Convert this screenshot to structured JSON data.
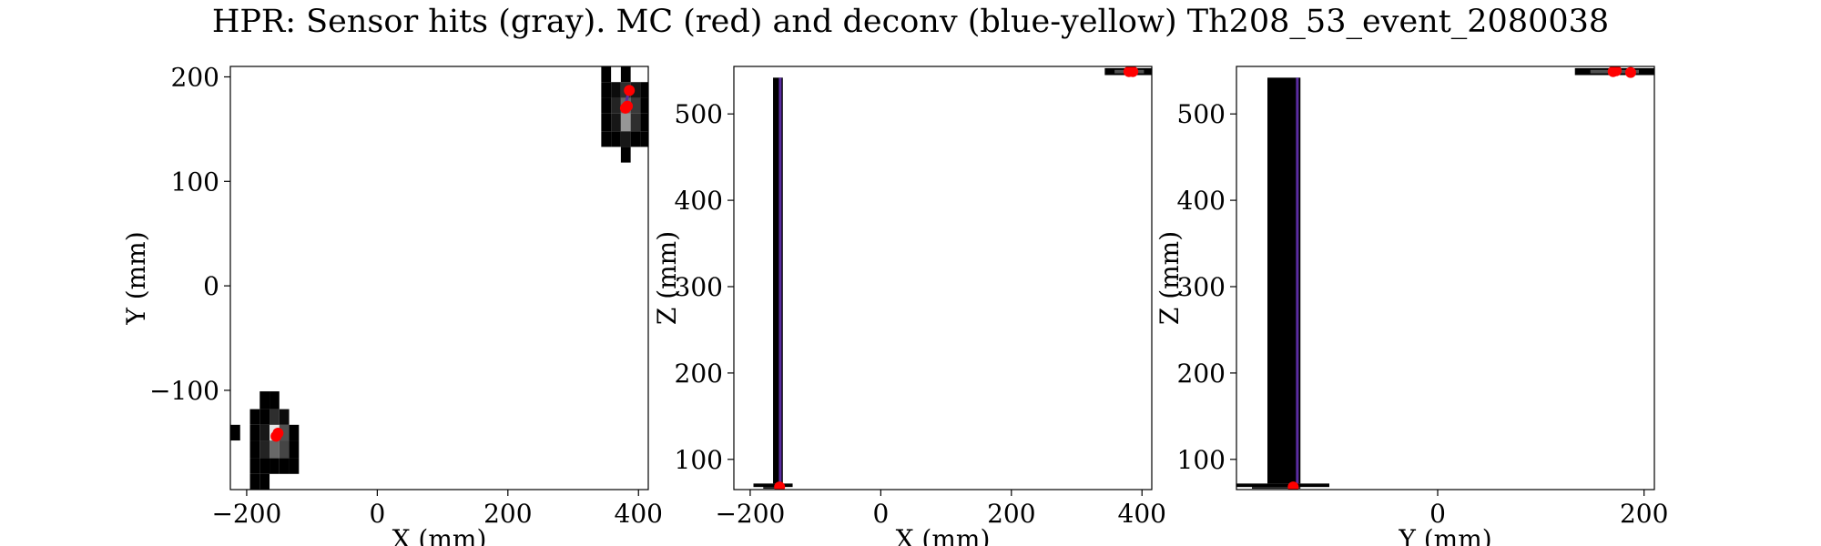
{
  "figure": {
    "title": "HPR: Sensor hits (gray). MC (red) and deconv (blue-yellow) Th208_53_event_2080038"
  },
  "colors": {
    "mc_points": "#ff0000",
    "deconv_line": "#5a2ca0",
    "sensor_hits_dark": "#000000",
    "sensor_hits_light": "#ffffff"
  },
  "chart_data": [
    {
      "type": "heatmap",
      "title": "",
      "xlabel": "X (mm)",
      "ylabel": "Y (mm)",
      "xlim": [
        -225,
        415
      ],
      "ylim": [
        -195,
        210
      ],
      "xticks": [
        -200,
        0,
        200,
        400
      ],
      "xtick_labels": [
        "−200",
        "0",
        "200",
        "400"
      ],
      "yticks": [
        -100,
        0,
        100,
        200
      ],
      "ytick_labels": [
        "−100",
        "0",
        "100",
        "200"
      ],
      "grid": false,
      "sensor_hits": [
        {
          "x0": -225,
          "x1": -210,
          "y0": -148,
          "y1": -133,
          "gray": 0.0
        },
        {
          "x0": -195,
          "x1": -180,
          "y0": -195,
          "y1": -180,
          "gray": 0.0
        },
        {
          "x0": -195,
          "x1": -180,
          "y0": -180,
          "y1": -165,
          "gray": 0.0
        },
        {
          "x0": -195,
          "x1": -180,
          "y0": -165,
          "y1": -148,
          "gray": 0.0
        },
        {
          "x0": -195,
          "x1": -180,
          "y0": -148,
          "y1": -133,
          "gray": 0.0
        },
        {
          "x0": -195,
          "x1": -180,
          "y0": -133,
          "y1": -118,
          "gray": 0.0
        },
        {
          "x0": -180,
          "x1": -165,
          "y0": -180,
          "y1": -165,
          "gray": 0.0
        },
        {
          "x0": -180,
          "x1": -165,
          "y0": -165,
          "y1": -148,
          "gray": 0.15
        },
        {
          "x0": -180,
          "x1": -165,
          "y0": -148,
          "y1": -133,
          "gray": 0.1
        },
        {
          "x0": -180,
          "x1": -165,
          "y0": -133,
          "y1": -118,
          "gray": 0.0
        },
        {
          "x0": -180,
          "x1": -165,
          "y0": -118,
          "y1": -101,
          "gray": 0.0
        },
        {
          "x0": -180,
          "x1": -165,
          "y0": -195,
          "y1": -180,
          "gray": 0.0
        },
        {
          "x0": -165,
          "x1": -150,
          "y0": -180,
          "y1": -165,
          "gray": 0.0
        },
        {
          "x0": -165,
          "x1": -150,
          "y0": -165,
          "y1": -148,
          "gray": 0.45
        },
        {
          "x0": -165,
          "x1": -150,
          "y0": -148,
          "y1": -133,
          "gray": 1.0
        },
        {
          "x0": -165,
          "x1": -150,
          "y0": -133,
          "y1": -118,
          "gray": 0.2
        },
        {
          "x0": -165,
          "x1": -150,
          "y0": -118,
          "y1": -101,
          "gray": 0.0
        },
        {
          "x0": -150,
          "x1": -135,
          "y0": -180,
          "y1": -165,
          "gray": 0.0
        },
        {
          "x0": -150,
          "x1": -135,
          "y0": -165,
          "y1": -148,
          "gray": 0.3
        },
        {
          "x0": -150,
          "x1": -135,
          "y0": -148,
          "y1": -133,
          "gray": 0.35
        },
        {
          "x0": -150,
          "x1": -135,
          "y0": -133,
          "y1": -118,
          "gray": 0.05
        },
        {
          "x0": -135,
          "x1": -120,
          "y0": -180,
          "y1": -165,
          "gray": 0.0
        },
        {
          "x0": -135,
          "x1": -120,
          "y0": -165,
          "y1": -148,
          "gray": 0.0
        },
        {
          "x0": -135,
          "x1": -120,
          "y0": -148,
          "y1": -133,
          "gray": 0.0
        },
        {
          "x0": 343,
          "x1": 358,
          "y0": 133,
          "y1": 148,
          "gray": 0.0
        },
        {
          "x0": 343,
          "x1": 358,
          "y0": 148,
          "y1": 165,
          "gray": 0.0
        },
        {
          "x0": 343,
          "x1": 358,
          "y0": 165,
          "y1": 180,
          "gray": 0.0
        },
        {
          "x0": 343,
          "x1": 358,
          "y0": 180,
          "y1": 195,
          "gray": 0.0
        },
        {
          "x0": 343,
          "x1": 358,
          "y0": 195,
          "y1": 210,
          "gray": 0.0
        },
        {
          "x0": 358,
          "x1": 373,
          "y0": 133,
          "y1": 148,
          "gray": 0.0
        },
        {
          "x0": 358,
          "x1": 373,
          "y0": 148,
          "y1": 165,
          "gray": 0.1
        },
        {
          "x0": 358,
          "x1": 373,
          "y0": 165,
          "y1": 180,
          "gray": 0.15
        },
        {
          "x0": 358,
          "x1": 373,
          "y0": 180,
          "y1": 195,
          "gray": 0.05
        },
        {
          "x0": 373,
          "x1": 388,
          "y0": 118,
          "y1": 133,
          "gray": 0.0
        },
        {
          "x0": 373,
          "x1": 388,
          "y0": 133,
          "y1": 148,
          "gray": 0.1
        },
        {
          "x0": 373,
          "x1": 388,
          "y0": 148,
          "y1": 165,
          "gray": 0.65
        },
        {
          "x0": 373,
          "x1": 388,
          "y0": 165,
          "y1": 180,
          "gray": 0.45
        },
        {
          "x0": 373,
          "x1": 388,
          "y0": 180,
          "y1": 195,
          "gray": 0.2
        },
        {
          "x0": 373,
          "x1": 388,
          "y0": 195,
          "y1": 210,
          "gray": 0.0
        },
        {
          "x0": 388,
          "x1": 403,
          "y0": 133,
          "y1": 148,
          "gray": 0.0
        },
        {
          "x0": 388,
          "x1": 403,
          "y0": 148,
          "y1": 165,
          "gray": 0.2
        },
        {
          "x0": 388,
          "x1": 403,
          "y0": 165,
          "y1": 180,
          "gray": 0.25
        },
        {
          "x0": 388,
          "x1": 403,
          "y0": 180,
          "y1": 195,
          "gray": 0.1
        },
        {
          "x0": 403,
          "x1": 415,
          "y0": 133,
          "y1": 148,
          "gray": 0.0
        },
        {
          "x0": 403,
          "x1": 415,
          "y0": 148,
          "y1": 165,
          "gray": 0.0
        },
        {
          "x0": 403,
          "x1": 415,
          "y0": 165,
          "y1": 180,
          "gray": 0.0
        },
        {
          "x0": 403,
          "x1": 415,
          "y0": 180,
          "y1": 195,
          "gray": 0.0
        }
      ],
      "deconv_tracks": [
        [
          [
            -158,
            -147
          ],
          [
            -155,
            -143
          ]
        ],
        [
          [
            378,
            168
          ],
          [
            382,
            178
          ],
          [
            386,
            188
          ]
        ]
      ],
      "mc_points": [
        {
          "x": -155,
          "y": -144
        },
        {
          "x": -152,
          "y": -141
        },
        {
          "x": 380,
          "y": 170
        },
        {
          "x": 383,
          "y": 172
        },
        {
          "x": 386,
          "y": 187
        }
      ]
    },
    {
      "type": "heatmap",
      "title": "",
      "xlabel": "X (mm)",
      "ylabel": "Z (mm)",
      "xlim": [
        -225,
        415
      ],
      "ylim": [
        65,
        555
      ],
      "xticks": [
        -200,
        0,
        200,
        400
      ],
      "xtick_labels": [
        "−200",
        "0",
        "200",
        "400"
      ],
      "yticks": [
        100,
        200,
        300,
        400,
        500
      ],
      "ytick_labels": [
        "100",
        "200",
        "300",
        "400",
        "500"
      ],
      "grid": false,
      "sensor_hits": [
        {
          "x0": -165,
          "x1": -150,
          "y0": 72,
          "y1": 542,
          "gray": 0.0
        },
        {
          "x0": -195,
          "x1": -135,
          "y0": 68,
          "y1": 72,
          "gray": 0.0
        },
        {
          "x0": -180,
          "x1": -150,
          "y0": 66,
          "y1": 68,
          "gray": 0.1
        },
        {
          "x0": 343,
          "x1": 415,
          "y0": 545,
          "y1": 553,
          "gray": 0.0
        },
        {
          "x0": 358,
          "x1": 403,
          "y0": 547,
          "y1": 551,
          "gray": 0.35
        }
      ],
      "deconv_tracks": [
        [
          [
            -154,
            72
          ],
          [
            -154,
            542
          ]
        ]
      ],
      "mc_points": [
        {
          "x": -155,
          "y": 68
        },
        {
          "x": 380,
          "y": 549
        },
        {
          "x": 383,
          "y": 550
        },
        {
          "x": 386,
          "y": 549
        }
      ]
    },
    {
      "type": "heatmap",
      "title": "",
      "xlabel": "Y (mm)",
      "ylabel": "Z (mm)",
      "xlim": [
        -195,
        210
      ],
      "ylim": [
        65,
        555
      ],
      "xticks": [
        0,
        200
      ],
      "xtick_labels": [
        "0",
        "200"
      ],
      "yticks": [
        100,
        200,
        300,
        400,
        500
      ],
      "ytick_labels": [
        "100",
        "200",
        "300",
        "400",
        "500"
      ],
      "grid": false,
      "sensor_hits": [
        {
          "x0": -165,
          "x1": -133,
          "y0": 72,
          "y1": 542,
          "gray": 0.0
        },
        {
          "x0": -195,
          "x1": -105,
          "y0": 68,
          "y1": 72,
          "gray": 0.0
        },
        {
          "x0": -180,
          "x1": -133,
          "y0": 66,
          "y1": 68,
          "gray": 0.1
        },
        {
          "x0": 133,
          "x1": 210,
          "y0": 545,
          "y1": 553,
          "gray": 0.0
        },
        {
          "x0": 148,
          "x1": 195,
          "y0": 547,
          "y1": 551,
          "gray": 0.35
        }
      ],
      "deconv_tracks": [
        [
          [
            -136,
            72
          ],
          [
            -136,
            542
          ]
        ]
      ],
      "mc_points": [
        {
          "x": -140,
          "y": 68
        },
        {
          "x": 170,
          "y": 549
        },
        {
          "x": 173,
          "y": 550
        },
        {
          "x": 187,
          "y": 548
        }
      ]
    }
  ]
}
